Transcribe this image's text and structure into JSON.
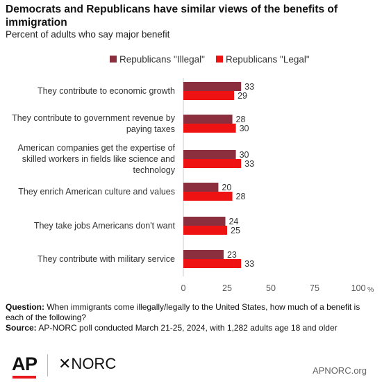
{
  "header": {
    "title": "Democrats and Republicans have similar views of the benefits of immigration",
    "subtitle": "Percent of adults who say major benefit"
  },
  "chart_data": {
    "type": "bar",
    "orientation": "horizontal",
    "categories": [
      [
        "They contribute to economic growth"
      ],
      [
        "They contribute to government revenue by",
        "paying taxes"
      ],
      [
        "American companies get the expertise of",
        "skilled workers in fields like science and",
        "technology"
      ],
      [
        "They enrich American culture and values"
      ],
      [
        "They take jobs Americans don't want"
      ],
      [
        "They contribute with military service"
      ]
    ],
    "series": [
      {
        "name": "Republicans \"Illegal\"",
        "color": "#8b2e3e",
        "values": [
          33,
          28,
          30,
          20,
          24,
          23
        ]
      },
      {
        "name": "Republicans \"Legal\"",
        "color": "#ef1212",
        "values": [
          29,
          30,
          33,
          28,
          25,
          33
        ]
      }
    ],
    "xlim": [
      0,
      100
    ],
    "xticks": [
      "0",
      "25",
      "50",
      "75",
      "100"
    ],
    "x_unit": "%",
    "legend_position": "top-right",
    "grid": false
  },
  "footnote": {
    "question_label": "Question:",
    "question_text": " When immigrants come illegally/legally to the United States, how much of a benefit is each of the following?",
    "source_label": "Source:",
    "source_text": " AP-NORC poll conducted March 21-25, 2024, with 1,282 adults age 18 and older"
  },
  "footer": {
    "ap_logo": "AP",
    "norc_logo": "✕NORC",
    "site": "APNORC.org"
  }
}
